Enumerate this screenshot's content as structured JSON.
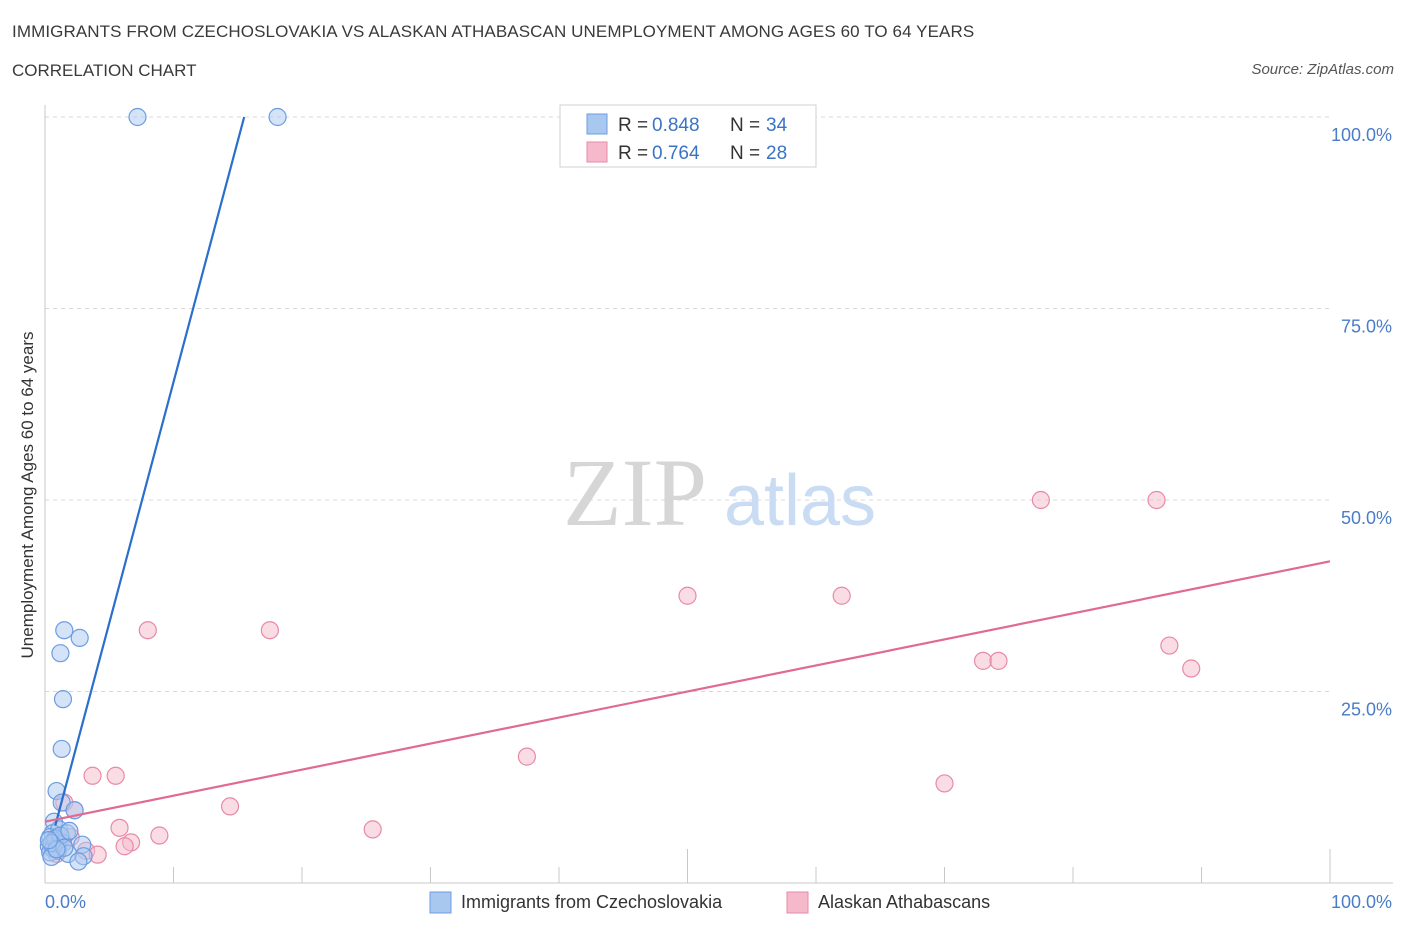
{
  "header": {
    "title": "IMMIGRANTS FROM CZECHOSLOVAKIA VS ALASKAN ATHABASCAN UNEMPLOYMENT AMONG AGES 60 TO 64 YEARS",
    "subtitle": "CORRELATION CHART",
    "source": "Source: ZipAtlas.com"
  },
  "watermark": {
    "zip": "ZIP",
    "atlas": "atlas"
  },
  "colors": {
    "blue_fill": "#a9c8f0",
    "blue_stroke": "#6d9de0",
    "blue_line": "#2b6fcc",
    "pink_fill": "#f6b9cc",
    "pink_stroke": "#e889a8",
    "pink_line": "#e06a94",
    "grid": "#d8d8d8",
    "axis_label": "#4a7cc7"
  },
  "chart_data": {
    "type": "scatter",
    "title": "IMMIGRANTS FROM CZECHOSLOVAKIA VS ALASKAN ATHABASCAN UNEMPLOYMENT AMONG AGES 60 TO 64 YEARS",
    "xlabel": "",
    "ylabel": "Unemployment Among Ages 60 to 64 years",
    "xlim": [
      0,
      100
    ],
    "ylim": [
      0,
      100
    ],
    "x_tick_labels": [
      "0.0%",
      "100.0%"
    ],
    "y_tick_labels": [
      "25.0%",
      "50.0%",
      "75.0%",
      "100.0%"
    ],
    "y_ticks": [
      25,
      50,
      75,
      100
    ],
    "grid": true,
    "legend_position": "top-center",
    "series": [
      {
        "name": "Immigrants from Czechoslovakia",
        "r_label": "R =",
        "r_value": "0.848",
        "n_label": "N =",
        "n_value": "34",
        "trend": {
          "x0": 0.8,
          "y0": 7.5,
          "x1": 15.5,
          "y1": 100
        },
        "points": [
          [
            7.2,
            100
          ],
          [
            18.1,
            100
          ],
          [
            1.5,
            33
          ],
          [
            2.7,
            32
          ],
          [
            1.2,
            30
          ],
          [
            1.4,
            24
          ],
          [
            1.3,
            17.5
          ],
          [
            0.9,
            12
          ],
          [
            1.3,
            10.5
          ],
          [
            2.3,
            9.5
          ],
          [
            0.7,
            8
          ],
          [
            0.6,
            6.5
          ],
          [
            1.1,
            7
          ],
          [
            1.7,
            6.5
          ],
          [
            0.4,
            6
          ],
          [
            0.7,
            5.5
          ],
          [
            1.0,
            5.0
          ],
          [
            1.4,
            5.2
          ],
          [
            2.9,
            5
          ],
          [
            0.3,
            4.8
          ],
          [
            0.6,
            4.5
          ],
          [
            1.0,
            4.2
          ],
          [
            0.4,
            4.0
          ],
          [
            1.8,
            3.8
          ],
          [
            3.0,
            3.5
          ],
          [
            0.5,
            3.4
          ],
          [
            2.6,
            2.8
          ],
          [
            0.8,
            5.8
          ],
          [
            1.2,
            6.2
          ],
          [
            0.5,
            5.2
          ],
          [
            1.5,
            4.6
          ],
          [
            0.9,
            4.4
          ],
          [
            0.3,
            5.6
          ],
          [
            1.9,
            6.8
          ]
        ]
      },
      {
        "name": "Alaskan Athabascans",
        "r_label": "R =",
        "r_value": "0.764",
        "n_label": "N =",
        "n_value": "28",
        "trend": {
          "x0": 0,
          "y0": 8,
          "x1": 100,
          "y1": 42
        },
        "points": [
          [
            77.5,
            50
          ],
          [
            86.5,
            50
          ],
          [
            50,
            37.5
          ],
          [
            62,
            37.5
          ],
          [
            8,
            33
          ],
          [
            17.5,
            33
          ],
          [
            87.5,
            31
          ],
          [
            73,
            29
          ],
          [
            74.2,
            29
          ],
          [
            89.2,
            28
          ],
          [
            37.5,
            16.5
          ],
          [
            70,
            13
          ],
          [
            5.5,
            14
          ],
          [
            3.7,
            14
          ],
          [
            1.5,
            10.5
          ],
          [
            2.3,
            9.5
          ],
          [
            14.4,
            10
          ],
          [
            25.5,
            7
          ],
          [
            5.8,
            7.2
          ],
          [
            8.9,
            6.2
          ],
          [
            6.7,
            5.3
          ],
          [
            6.2,
            4.8
          ],
          [
            3.2,
            4.2
          ],
          [
            4.1,
            3.7
          ],
          [
            0.6,
            4.5
          ],
          [
            1.2,
            5.5
          ],
          [
            0.9,
            3.8
          ],
          [
            2.0,
            6.0
          ]
        ]
      }
    ]
  }
}
